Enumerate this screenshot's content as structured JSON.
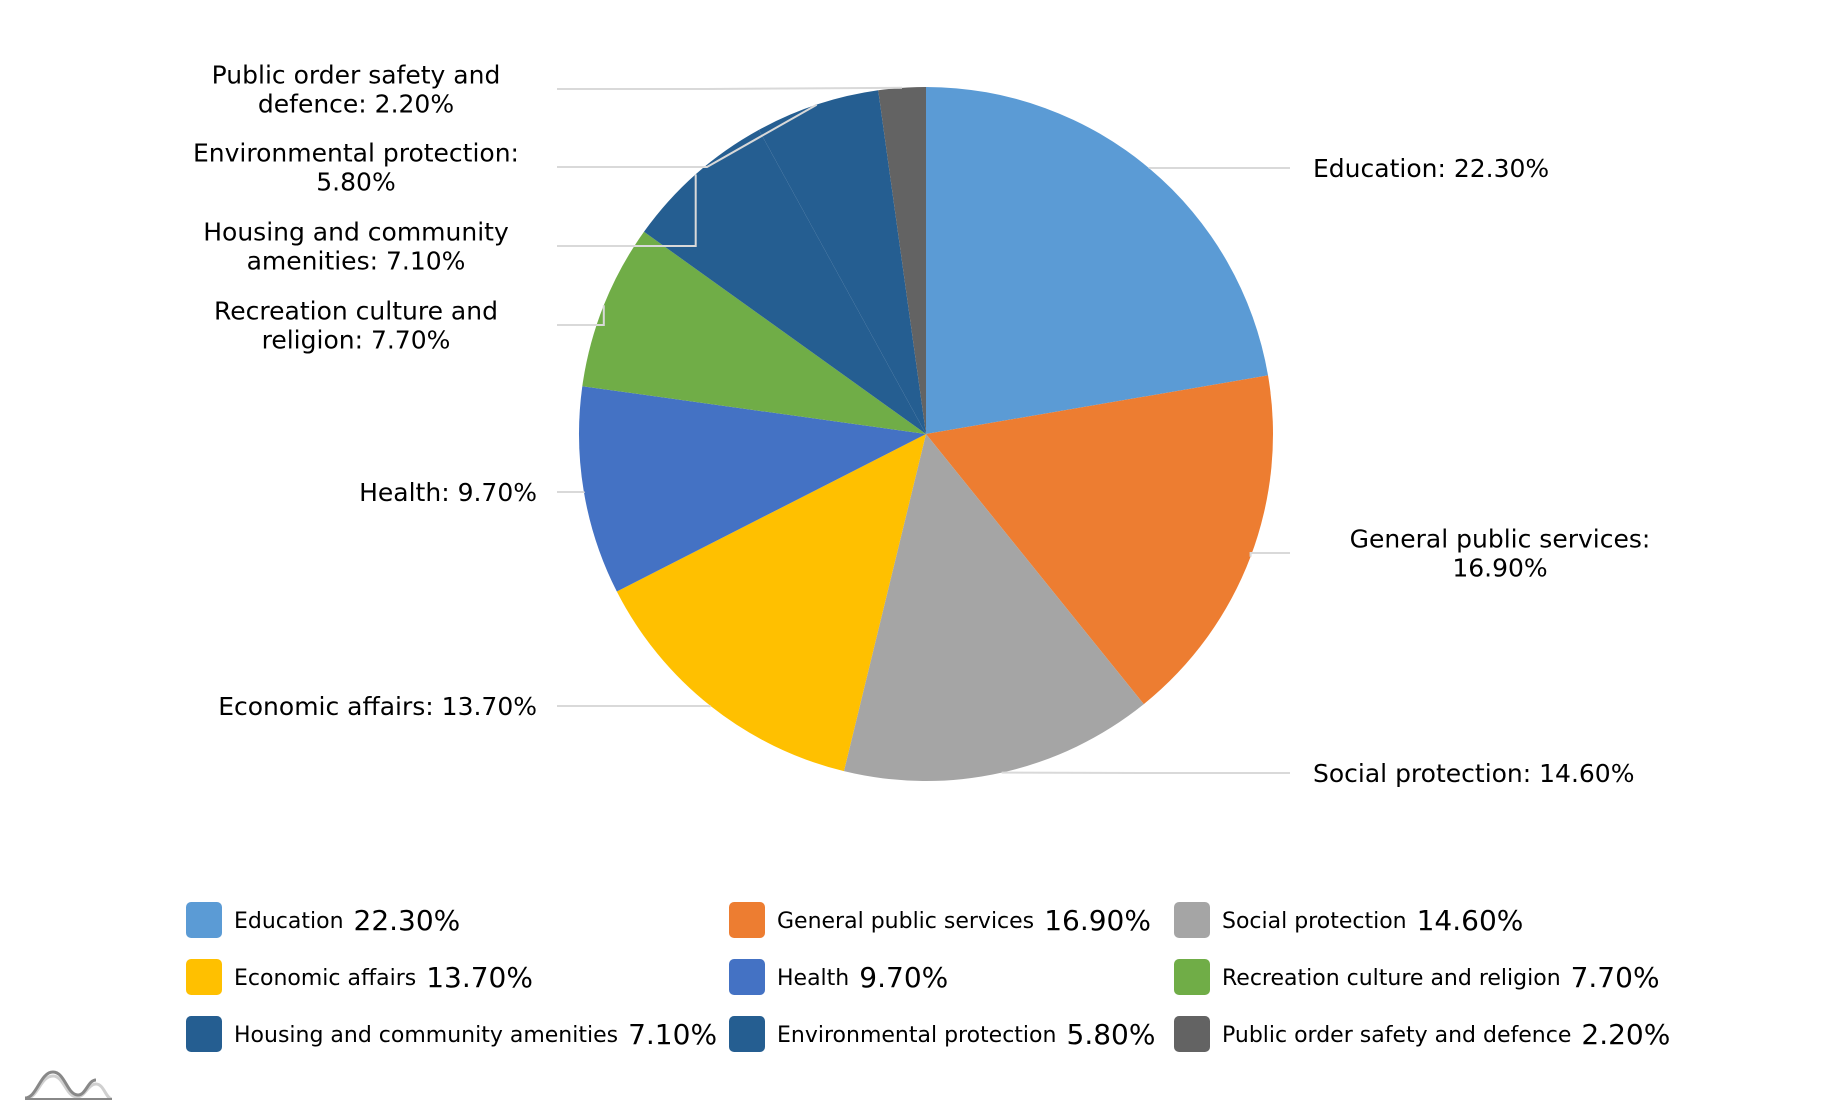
{
  "chart_data": {
    "type": "pie",
    "title": "",
    "slices": [
      {
        "name": "Education",
        "value": 22.3,
        "display": "22.30%",
        "color": "#5B9BD5",
        "callout": [
          "Education: 22.30%"
        ]
      },
      {
        "name": "General public services",
        "value": 16.9,
        "display": "16.90%",
        "color": "#ED7D31",
        "callout": [
          "General public services:",
          "16.90%"
        ]
      },
      {
        "name": "Social protection",
        "value": 14.6,
        "display": "14.60%",
        "color": "#A5A5A5",
        "callout": [
          "Social protection: 14.60%"
        ]
      },
      {
        "name": "Economic affairs",
        "value": 13.7,
        "display": "13.70%",
        "color": "#FFC000",
        "callout": [
          "Economic affairs: 13.70%"
        ]
      },
      {
        "name": "Health",
        "value": 9.7,
        "display": "9.70%",
        "color": "#4472C4",
        "callout": [
          "Health: 9.70%"
        ]
      },
      {
        "name": "Recreation culture and religion",
        "value": 7.7,
        "display": "7.70%",
        "color": "#70AD47",
        "callout": [
          "Recreation culture and",
          "religion: 7.70%"
        ]
      },
      {
        "name": "Housing and community amenities",
        "value": 7.1,
        "display": "7.10%",
        "color": "#255E91",
        "callout": [
          "Housing and community",
          "amenities: 7.10%"
        ]
      },
      {
        "name": "Environmental protection",
        "value": 5.8,
        "display": "5.80%",
        "color": "#255E91",
        "callout": [
          "Environmental protection:",
          "5.80%"
        ]
      },
      {
        "name": "Public order safety and defence",
        "value": 2.2,
        "display": "2.20%",
        "color": "#636363",
        "callout": [
          "Public order safety and",
          "defence: 2.20%"
        ]
      }
    ],
    "legend": {
      "position": "bottom",
      "columns": 3
    }
  }
}
